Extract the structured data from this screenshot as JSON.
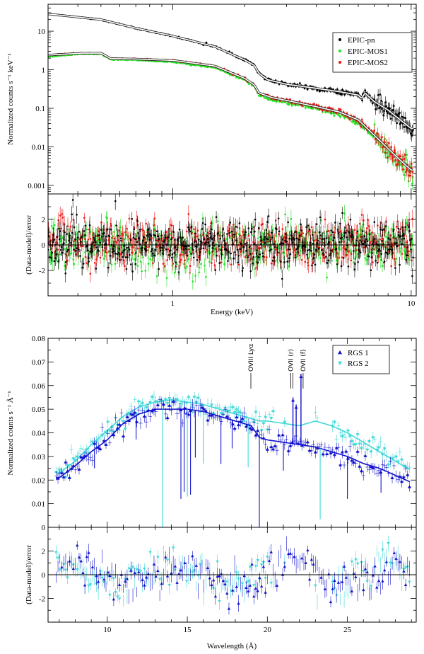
{
  "chart_data": [
    {
      "id": "epic",
      "type": "scatter",
      "panels": [
        {
          "name": "spectrum",
          "ylabel": "Normalized counts s⁻¹ keV⁻¹",
          "yscale": "log",
          "ylim": [
            0.0006,
            50
          ],
          "yticks": [
            0.001,
            0.01,
            0.1,
            1,
            10
          ],
          "yticklabels": [
            "0.001",
            "0.01",
            "0.1",
            "1",
            "10"
          ]
        },
        {
          "name": "residuals",
          "ylabel": "(Data-model)/error",
          "ylim": [
            -4,
            4
          ],
          "yticks": [
            -2,
            0,
            2
          ],
          "yticklabels": [
            "-2",
            "0",
            "2"
          ]
        }
      ],
      "xlabel": "Energy (keV)",
      "xscale": "log",
      "xlim": [
        0.3,
        10.5
      ],
      "xticks": [
        1,
        10
      ],
      "xticklabels": [
        "1",
        "10"
      ],
      "legend": "top-right",
      "series": [
        {
          "name": "EPIC-pn",
          "color": "#000000",
          "marker": "dot",
          "x": [
            0.3,
            0.5,
            0.7,
            1.0,
            1.5,
            2.0,
            2.2,
            2.3,
            2.5,
            3.0,
            4.0,
            5.0,
            6.0,
            6.2,
            6.4,
            7.0,
            8.0,
            9.0,
            10.0
          ],
          "y": [
            28,
            20,
            12,
            7.5,
            4.0,
            1.8,
            1.3,
            0.8,
            0.55,
            0.42,
            0.33,
            0.27,
            0.22,
            0.18,
            0.25,
            0.15,
            0.09,
            0.05,
            0.03
          ]
        },
        {
          "name": "EPIC-MOS1",
          "color": "#22e022",
          "marker": "dot",
          "x": [
            0.3,
            0.42,
            0.5,
            0.55,
            0.7,
            1.0,
            1.5,
            2.0,
            2.2,
            2.3,
            2.6,
            3.0,
            4.0,
            5.0,
            6.0,
            7.0,
            8.0,
            9.0,
            10.0
          ],
          "y": [
            2.2,
            2.6,
            2.6,
            1.85,
            1.8,
            1.6,
            1.15,
            0.55,
            0.37,
            0.22,
            0.17,
            0.14,
            0.1,
            0.07,
            0.045,
            0.018,
            0.008,
            0.004,
            0.0022
          ]
        },
        {
          "name": "EPIC-MOS2",
          "color": "#ee1111",
          "marker": "dot",
          "x": [
            0.3,
            0.42,
            0.5,
            0.55,
            0.7,
            1.0,
            1.5,
            2.0,
            2.2,
            2.3,
            2.6,
            3.0,
            4.0,
            5.0,
            6.0,
            7.0,
            8.0,
            9.0,
            10.0
          ],
          "y": [
            2.4,
            2.7,
            2.7,
            1.95,
            1.9,
            1.75,
            1.25,
            0.6,
            0.4,
            0.25,
            0.19,
            0.16,
            0.11,
            0.08,
            0.05,
            0.02,
            0.009,
            0.0045,
            0.0025
          ]
        }
      ],
      "model": {
        "name": "model",
        "color": "#ffffff",
        "x": [
          0.3,
          0.5,
          0.7,
          1.0,
          1.5,
          2.0,
          2.2,
          2.3,
          2.5,
          3.0,
          4.0,
          5.0,
          6.0,
          6.2,
          6.4,
          7.0,
          8.0,
          9.0,
          10.0
        ],
        "y": [
          28,
          20,
          12,
          7.5,
          4.0,
          1.8,
          1.3,
          0.8,
          0.55,
          0.42,
          0.33,
          0.27,
          0.22,
          0.18,
          0.25,
          0.15,
          0.09,
          0.05,
          0.03
        ]
      }
    },
    {
      "id": "rgs",
      "type": "scatter",
      "panels": [
        {
          "name": "spectrum",
          "ylabel": "Normalized counts s⁻¹ Å⁻¹",
          "ylim": [
            0,
            0.08
          ],
          "yticks": [
            0,
            0.01,
            0.02,
            0.03,
            0.04,
            0.05,
            0.06,
            0.07,
            0.08
          ],
          "yticklabels": [
            "0",
            "0.01",
            "0.02",
            "0.03",
            "0.04",
            "0.05",
            "0.06",
            "0.07",
            "0.08"
          ]
        },
        {
          "name": "residuals",
          "ylabel": "(Data-model)/error",
          "ylim": [
            -4,
            4
          ],
          "yticks": [
            -2,
            0,
            2
          ],
          "yticklabels": [
            "-2",
            "0",
            "2"
          ]
        }
      ],
      "xlabel": "Wavelength (Å)",
      "xlim": [
        6.3,
        29.3
      ],
      "xticks": [
        10,
        15,
        20,
        25
      ],
      "xticklabels": [
        "10",
        "15",
        "20",
        "25"
      ],
      "legend": "top-right",
      "series": [
        {
          "name": "RGS 1",
          "color": "#1111cc",
          "marker": "triangle-up",
          "x": [
            7,
            8,
            9,
            10,
            11,
            12,
            13,
            14,
            15,
            16,
            17,
            18,
            19,
            19.5,
            20,
            21,
            22,
            23,
            24,
            25,
            26,
            27,
            28,
            29
          ],
          "y": [
            0.021,
            0.026,
            0.032,
            0.037,
            0.044,
            0.048,
            0.05,
            0.05,
            0.05,
            0.049,
            0.047,
            0.045,
            0.043,
            0.038,
            0.037,
            0.036,
            0.035,
            0.034,
            0.032,
            0.03,
            0.027,
            0.025,
            0.022,
            0.019
          ]
        },
        {
          "name": "RGS 2",
          "color": "#40d8d8",
          "marker": "triangle-down",
          "x": [
            7,
            8,
            9,
            10,
            11,
            12,
            13,
            14,
            15,
            16,
            17,
            18,
            19,
            19.5,
            20,
            21,
            22,
            23,
            24,
            25,
            26,
            27,
            28,
            29
          ],
          "y": [
            0.023,
            0.028,
            0.035,
            0.041,
            0.047,
            0.051,
            0.053,
            0.054,
            0.053,
            0.052,
            0.05,
            0.048,
            0.046,
            0.045,
            0.045,
            0.044,
            0.043,
            0.045,
            0.043,
            0.04,
            0.036,
            0.032,
            0.028,
            0.024
          ]
        }
      ],
      "absorption_lines": [
        {
          "x": 9.2,
          "depth": 0.008
        },
        {
          "x": 11.8,
          "depth": 0.01
        },
        {
          "x": 13.45,
          "depth": 0.05
        },
        {
          "x": 14.6,
          "depth": 0.038
        },
        {
          "x": 14.8,
          "depth": 0.035
        },
        {
          "x": 15.0,
          "depth": 0.037
        },
        {
          "x": 15.2,
          "depth": 0.036
        },
        {
          "x": 15.5,
          "depth": 0.02
        },
        {
          "x": 16.0,
          "depth": 0.022
        },
        {
          "x": 17.1,
          "depth": 0.02
        },
        {
          "x": 17.8,
          "depth": 0.012
        },
        {
          "x": 18.8,
          "depth": 0.018
        },
        {
          "x": 19.5,
          "depth": 0.044
        },
        {
          "x": 21.0,
          "depth": 0.012
        },
        {
          "x": 23.3,
          "depth": 0.03
        },
        {
          "x": 25.0,
          "depth": 0.018
        },
        {
          "x": 27.1,
          "depth": 0.01
        }
      ],
      "emission_lines": [
        {
          "x": 21.6,
          "peak": 0.055
        },
        {
          "x": 21.8,
          "peak": 0.052
        },
        {
          "x": 22.1,
          "peak": 0.065
        }
      ],
      "annotations": [
        {
          "label": "OVIII Lyα",
          "x": 18.97
        },
        {
          "label": "OVII (r)",
          "x": 21.6
        },
        {
          "label": "OVII (f)",
          "x": 22.1
        }
      ]
    }
  ]
}
